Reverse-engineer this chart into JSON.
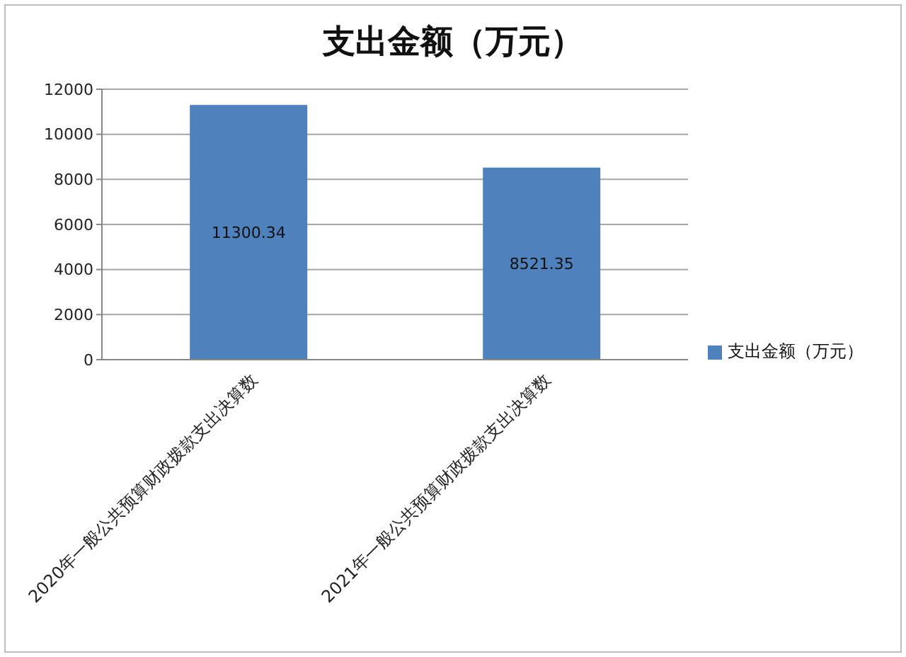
{
  "chart_data": {
    "type": "bar",
    "title": "支出金额（万元）",
    "categories": [
      "2020年一般公共预算财政拨款支出决算数",
      "2021年一般公共预算财政拨款支出决算数"
    ],
    "series": [
      {
        "name": "支出金额（万元）",
        "color": "#4f81bd",
        "values": [
          11300.34,
          8521.35
        ]
      }
    ],
    "ylim": [
      0,
      12000
    ],
    "yticks": [
      0,
      2000,
      4000,
      6000,
      8000,
      10000,
      12000
    ],
    "grid": "y",
    "legend": "right",
    "data_labels": true
  }
}
